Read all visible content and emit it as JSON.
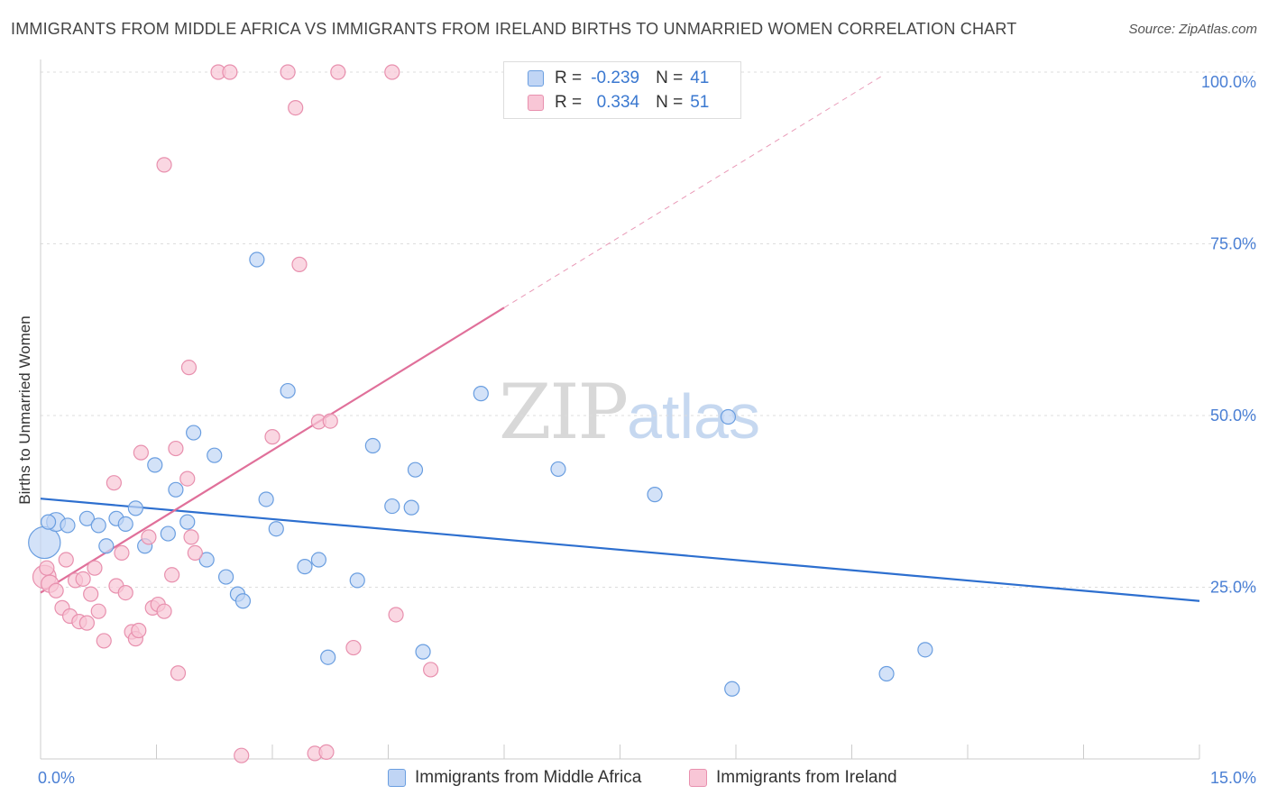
{
  "title": "IMMIGRANTS FROM MIDDLE AFRICA VS IMMIGRANTS FROM IRELAND BIRTHS TO UNMARRIED WOMEN CORRELATION CHART",
  "source": "Source: ZipAtlas.com",
  "watermark": {
    "zip": "ZIP",
    "atlas": "atlas"
  },
  "legend": {
    "rows": [
      {
        "r_label": "R =",
        "r_value": "-0.239",
        "n_label": "N =",
        "n_value": "41"
      },
      {
        "r_label": "R =",
        "r_value": "0.334",
        "n_label": "N =",
        "n_value": "51"
      }
    ]
  },
  "bottom_legend": [
    "Immigrants from Middle Africa",
    "Immigrants from Ireland"
  ],
  "colors": {
    "blue_fill": "#c0d5f5",
    "blue_stroke": "#6a9ee0",
    "blue_line": "#2d6fcf",
    "pink_fill": "#f8c6d6",
    "pink_stroke": "#e890ae",
    "pink_line": "#e0709a",
    "tick_text": "#4a7fd4",
    "grid": "#dddddd"
  },
  "chart_data": {
    "type": "scatter",
    "title": "IMMIGRANTS FROM MIDDLE AFRICA VS IMMIGRANTS FROM IRELAND BIRTHS TO UNMARRIED WOMEN CORRELATION CHART",
    "xlabel": "",
    "ylabel": "Births to Unmarried Women",
    "xlim": [
      0,
      15
    ],
    "ylim": [
      0,
      100
    ],
    "x_tick_labels": [
      "0.0%",
      "15.0%"
    ],
    "y_ticks": [
      25,
      50,
      75,
      100
    ],
    "y_tick_labels": [
      "25.0%",
      "50.0%",
      "75.0%",
      "100.0%"
    ],
    "grid": true,
    "legend_position": "top-center",
    "series": [
      {
        "name": "Immigrants from Middle Africa",
        "color": "#6a9ee0",
        "points": [
          [
            0.05,
            31.5,
            2.2
          ],
          [
            0.2,
            34.5,
            1.3
          ],
          [
            0.35,
            34.0,
            1
          ],
          [
            0.6,
            35.0,
            1
          ],
          [
            0.75,
            34.0,
            1
          ],
          [
            0.85,
            31.0,
            1
          ],
          [
            0.98,
            35.0,
            1
          ],
          [
            1.1,
            34.2,
            1
          ],
          [
            1.23,
            36.5,
            1
          ],
          [
            1.35,
            31.0,
            1
          ],
          [
            1.48,
            42.8,
            1
          ],
          [
            1.65,
            32.8,
            1
          ],
          [
            1.75,
            39.2,
            1
          ],
          [
            1.9,
            34.5,
            1
          ],
          [
            1.98,
            47.5,
            1
          ],
          [
            2.15,
            29.0,
            1
          ],
          [
            2.25,
            44.2,
            1
          ],
          [
            2.4,
            26.5,
            1
          ],
          [
            2.55,
            24.0,
            1
          ],
          [
            2.62,
            23.0,
            1
          ],
          [
            2.8,
            72.7,
            1
          ],
          [
            2.92,
            37.8,
            1
          ],
          [
            3.05,
            33.5,
            1
          ],
          [
            3.2,
            53.6,
            1
          ],
          [
            3.42,
            28.0,
            1
          ],
          [
            3.6,
            29.0,
            1
          ],
          [
            3.72,
            14.8,
            1
          ],
          [
            4.1,
            26.0,
            1
          ],
          [
            4.3,
            45.6,
            1
          ],
          [
            4.55,
            36.8,
            1
          ],
          [
            4.8,
            36.6,
            1
          ],
          [
            4.85,
            42.1,
            1
          ],
          [
            4.95,
            15.6,
            1
          ],
          [
            5.7,
            53.2,
            1
          ],
          [
            6.7,
            42.2,
            1
          ],
          [
            7.95,
            38.5,
            1
          ],
          [
            8.9,
            49.8,
            1
          ],
          [
            8.95,
            10.2,
            1
          ],
          [
            10.95,
            12.4,
            1
          ],
          [
            11.45,
            15.9,
            1
          ],
          [
            0.1,
            34.5,
            1
          ]
        ]
      },
      {
        "name": "Immigrants from Ireland",
        "color": "#e890ae",
        "points": [
          [
            0.05,
            26.5,
            1.6
          ],
          [
            0.12,
            25.5,
            1.2
          ],
          [
            0.2,
            24.5,
            1
          ],
          [
            0.28,
            22.0,
            1
          ],
          [
            0.33,
            29.0,
            1
          ],
          [
            0.38,
            20.8,
            1
          ],
          [
            0.45,
            26.0,
            1
          ],
          [
            0.5,
            20.0,
            1
          ],
          [
            0.55,
            26.2,
            1
          ],
          [
            0.6,
            19.8,
            1
          ],
          [
            0.65,
            24.0,
            1
          ],
          [
            0.7,
            27.8,
            1
          ],
          [
            0.75,
            21.5,
            1
          ],
          [
            0.82,
            17.2,
            1
          ],
          [
            0.95,
            40.2,
            1
          ],
          [
            0.98,
            25.2,
            1
          ],
          [
            1.05,
            30.0,
            1
          ],
          [
            1.1,
            24.2,
            1
          ],
          [
            1.18,
            18.5,
            1
          ],
          [
            1.23,
            17.5,
            1
          ],
          [
            1.27,
            18.7,
            1
          ],
          [
            1.3,
            44.6,
            1
          ],
          [
            1.4,
            32.3,
            1
          ],
          [
            1.45,
            22.0,
            1
          ],
          [
            1.52,
            22.5,
            1
          ],
          [
            1.6,
            21.5,
            1
          ],
          [
            1.6,
            86.5,
            1
          ],
          [
            1.7,
            26.8,
            1
          ],
          [
            1.75,
            45.2,
            1
          ],
          [
            1.78,
            12.5,
            1
          ],
          [
            1.9,
            40.8,
            1
          ],
          [
            1.92,
            57.0,
            1
          ],
          [
            1.95,
            32.3,
            1
          ],
          [
            2.0,
            30.0,
            1
          ],
          [
            2.3,
            100.0,
            1
          ],
          [
            2.45,
            100.0,
            1
          ],
          [
            2.6,
            0.5,
            1
          ],
          [
            3.0,
            46.9,
            1
          ],
          [
            3.2,
            100.0,
            1
          ],
          [
            3.3,
            94.8,
            1
          ],
          [
            3.35,
            72.0,
            1
          ],
          [
            3.55,
            0.8,
            1
          ],
          [
            3.6,
            49.1,
            1
          ],
          [
            3.7,
            1.0,
            1
          ],
          [
            3.85,
            100.0,
            1
          ],
          [
            4.05,
            16.2,
            1
          ],
          [
            4.55,
            100.0,
            1
          ],
          [
            4.6,
            21.0,
            1
          ],
          [
            5.05,
            13.0,
            1
          ],
          [
            3.75,
            49.2,
            1
          ],
          [
            0.08,
            27.8,
            1
          ]
        ]
      }
    ],
    "trendlines": [
      {
        "series": "Immigrants from Middle Africa",
        "color": "#2d6fcf",
        "x": [
          0,
          15
        ],
        "y": [
          37.9,
          23.0
        ],
        "style": "solid"
      },
      {
        "series": "Immigrants from Ireland",
        "color": "#e0709a",
        "x": [
          0,
          6.0
        ],
        "y": [
          24.2,
          65.7
        ],
        "style": "solid"
      },
      {
        "series": "Immigrants from Ireland",
        "color": "#e0709a",
        "x": [
          6.0,
          10.9
        ],
        "y": [
          65.7,
          99.5
        ],
        "style": "dashed"
      }
    ]
  }
}
